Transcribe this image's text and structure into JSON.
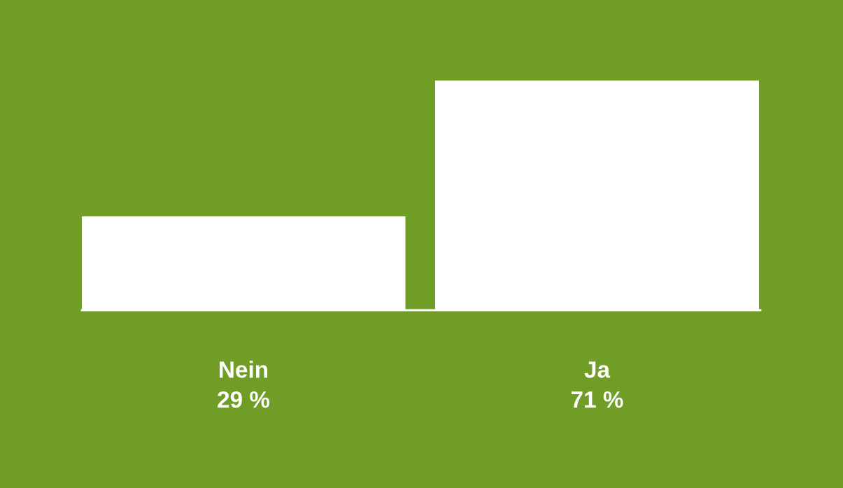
{
  "chart_data": {
    "type": "bar",
    "categories": [
      "Nein",
      "Ja"
    ],
    "values": [
      29,
      71
    ],
    "color": "#ffffff",
    "value_labels": [
      "29 %",
      "71 %"
    ],
    "tick_labels": "x",
    "grid": false,
    "legend": false
  }
}
